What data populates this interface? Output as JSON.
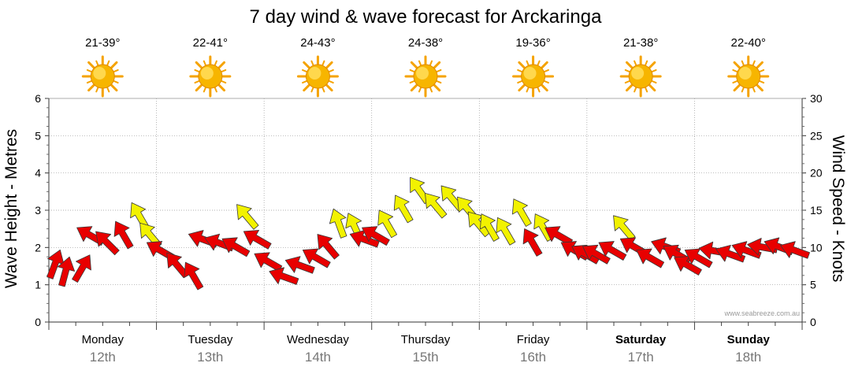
{
  "chart_data": {
    "type": "scatter",
    "title": "7 day wind & wave forecast for Arckaringa",
    "ylabel_left": "Wave Height - Metres",
    "ylabel_right": "Wind Speed - Knots",
    "ylim_left": [
      0,
      6
    ],
    "ylim_right": [
      0,
      30
    ],
    "left_ticks": [
      "0",
      "1",
      "2",
      "3",
      "4",
      "5",
      "6"
    ],
    "right_ticks": [
      "0",
      "5",
      "10",
      "15",
      "20",
      "25",
      "30"
    ],
    "grid": true,
    "days": [
      {
        "day": "Monday",
        "date": "12th",
        "temp": "21-39°",
        "weekend": false
      },
      {
        "day": "Tuesday",
        "date": "13th",
        "temp": "22-41°",
        "weekend": false
      },
      {
        "day": "Wednesday",
        "date": "14th",
        "temp": "24-43°",
        "weekend": false
      },
      {
        "day": "Thursday",
        "date": "15th",
        "temp": "24-38°",
        "weekend": false
      },
      {
        "day": "Friday",
        "date": "16th",
        "temp": "19-36°",
        "weekend": false
      },
      {
        "day": "Saturday",
        "date": "17th",
        "temp": "21-38°",
        "weekend": true
      },
      {
        "day": "Sunday",
        "date": "18th",
        "temp": "22-40°",
        "weekend": true
      }
    ],
    "weather_icon": "sun-icon",
    "colors": {
      "strong_wind": "#e80000",
      "light_wind": "#f2f200",
      "outline": "#3a3a3a",
      "grid": "#999999"
    },
    "series": [
      {
        "note": "wind arrows; y = wind speed in knots, dir = compass bearing wind blows towards",
        "color": "per-point",
        "points": [
          {
            "t": 0.05,
            "y": 7.5,
            "dir": 20,
            "c": "red"
          },
          {
            "t": 0.15,
            "y": 6.5,
            "dir": 15,
            "c": "red"
          },
          {
            "t": 0.3,
            "y": 7.0,
            "dir": 30,
            "c": "red"
          },
          {
            "t": 0.4,
            "y": 11.5,
            "dir": 300,
            "c": "red"
          },
          {
            "t": 0.55,
            "y": 10.5,
            "dir": 315,
            "c": "red"
          },
          {
            "t": 0.7,
            "y": 11.5,
            "dir": 330,
            "c": "red"
          },
          {
            "t": 0.85,
            "y": 14.0,
            "dir": 330,
            "c": "yellow"
          },
          {
            "t": 0.95,
            "y": 11.5,
            "dir": 320,
            "c": "yellow"
          },
          {
            "t": 1.05,
            "y": 9.5,
            "dir": 300,
            "c": "red"
          },
          {
            "t": 1.2,
            "y": 7.5,
            "dir": 320,
            "c": "red"
          },
          {
            "t": 1.35,
            "y": 6.0,
            "dir": 330,
            "c": "red"
          },
          {
            "t": 1.45,
            "y": 11.0,
            "dir": 290,
            "c": "red"
          },
          {
            "t": 1.6,
            "y": 10.5,
            "dir": 290,
            "c": "red"
          },
          {
            "t": 1.75,
            "y": 10.0,
            "dir": 300,
            "c": "red"
          },
          {
            "t": 1.85,
            "y": 14.0,
            "dir": 320,
            "c": "yellow"
          },
          {
            "t": 1.95,
            "y": 11.0,
            "dir": 300,
            "c": "red"
          },
          {
            "t": 2.05,
            "y": 8.0,
            "dir": 300,
            "c": "red"
          },
          {
            "t": 2.2,
            "y": 6.0,
            "dir": 290,
            "c": "red"
          },
          {
            "t": 2.35,
            "y": 7.5,
            "dir": 290,
            "c": "red"
          },
          {
            "t": 2.5,
            "y": 8.5,
            "dir": 300,
            "c": "red"
          },
          {
            "t": 2.6,
            "y": 10.0,
            "dir": 320,
            "c": "red"
          },
          {
            "t": 2.7,
            "y": 13.0,
            "dir": 340,
            "c": "yellow"
          },
          {
            "t": 2.85,
            "y": 12.5,
            "dir": 335,
            "c": "yellow"
          },
          {
            "t": 2.95,
            "y": 11.0,
            "dir": 290,
            "c": "red"
          },
          {
            "t": 3.05,
            "y": 11.5,
            "dir": 300,
            "c": "red"
          },
          {
            "t": 3.15,
            "y": 13.0,
            "dir": 330,
            "c": "yellow"
          },
          {
            "t": 3.3,
            "y": 15.0,
            "dir": 330,
            "c": "yellow"
          },
          {
            "t": 3.45,
            "y": 17.5,
            "dir": 325,
            "c": "yellow"
          },
          {
            "t": 3.6,
            "y": 15.5,
            "dir": 320,
            "c": "yellow"
          },
          {
            "t": 3.75,
            "y": 16.5,
            "dir": 320,
            "c": "yellow"
          },
          {
            "t": 3.9,
            "y": 15.0,
            "dir": 320,
            "c": "yellow"
          },
          {
            "t": 4.0,
            "y": 13.0,
            "dir": 320,
            "c": "yellow"
          },
          {
            "t": 4.1,
            "y": 12.5,
            "dir": 330,
            "c": "yellow"
          },
          {
            "t": 4.25,
            "y": 12.0,
            "dir": 330,
            "c": "yellow"
          },
          {
            "t": 4.4,
            "y": 14.5,
            "dir": 330,
            "c": "yellow"
          },
          {
            "t": 4.5,
            "y": 10.5,
            "dir": 330,
            "c": "red"
          },
          {
            "t": 4.6,
            "y": 12.5,
            "dir": 330,
            "c": "yellow"
          },
          {
            "t": 4.75,
            "y": 11.5,
            "dir": 300,
            "c": "red"
          },
          {
            "t": 4.9,
            "y": 9.5,
            "dir": 300,
            "c": "red"
          },
          {
            "t": 5.0,
            "y": 9.0,
            "dir": 300,
            "c": "red"
          },
          {
            "t": 5.1,
            "y": 9.0,
            "dir": 300,
            "c": "red"
          },
          {
            "t": 5.25,
            "y": 9.5,
            "dir": 300,
            "c": "red"
          },
          {
            "t": 5.35,
            "y": 12.5,
            "dir": 320,
            "c": "yellow"
          },
          {
            "t": 5.45,
            "y": 10.0,
            "dir": 300,
            "c": "red"
          },
          {
            "t": 5.6,
            "y": 8.5,
            "dir": 300,
            "c": "red"
          },
          {
            "t": 5.75,
            "y": 10.0,
            "dir": 290,
            "c": "red"
          },
          {
            "t": 5.85,
            "y": 9.0,
            "dir": 300,
            "c": "red"
          },
          {
            "t": 5.95,
            "y": 7.5,
            "dir": 300,
            "c": "red"
          },
          {
            "t": 6.05,
            "y": 8.5,
            "dir": 300,
            "c": "red"
          },
          {
            "t": 6.2,
            "y": 9.5,
            "dir": 280,
            "c": "red"
          },
          {
            "t": 6.35,
            "y": 9.0,
            "dir": 290,
            "c": "red"
          },
          {
            "t": 6.5,
            "y": 9.5,
            "dir": 290,
            "c": "red"
          },
          {
            "t": 6.65,
            "y": 10.0,
            "dir": 280,
            "c": "red"
          },
          {
            "t": 6.8,
            "y": 10.0,
            "dir": 290,
            "c": "red"
          },
          {
            "t": 6.95,
            "y": 9.5,
            "dir": 290,
            "c": "red"
          }
        ]
      }
    ]
  },
  "credit": "www.seabreeze.com.au"
}
